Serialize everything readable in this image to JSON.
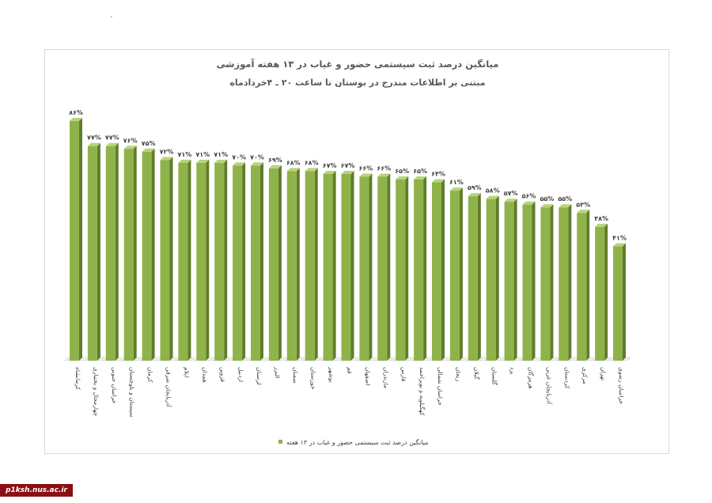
{
  "chart_data": {
    "type": "bar",
    "title": "میانگین درصد ثبت سیستمی حضور و غیاب در ۱۳ هفته آموزشی",
    "subtitle": "مبتنی بر اطلاعات مندرج در بوستان تا ساعت ۲۰ ـ ۴خردادماه",
    "categories": [
      "کرمانشاه",
      "چهارمحال و بختیاری",
      "خراسان جنوبی",
      "سیستان و بلوچستان",
      "کرمان",
      "آذربایجان شرقی",
      "ایلام",
      "همدان",
      "قزوین",
      "اردبیل",
      "لرستان",
      "البرز",
      "سمنان",
      "خوزستان",
      "بوشهر",
      "قم",
      "اصفهان",
      "مازندران",
      "فارس",
      "کهگیلویه و بویراحمد",
      "خراسان شمالی",
      "زنجان",
      "گیلان",
      "گلستان",
      "یزد",
      "هرمزگان",
      "آذربایجان غربی",
      "کردستان",
      "مرکزی",
      "تهران",
      "خراسان رضوی"
    ],
    "series": [
      {
        "name": "میانگین درصد ثبت سیستمی حضور و غیاب در ۱۳ هفته",
        "values": [
          86,
          77,
          77,
          76,
          75,
          72,
          71,
          71,
          71,
          70,
          70,
          69,
          68,
          68,
          67,
          67,
          66,
          66,
          65,
          65,
          64,
          61,
          59,
          58,
          57,
          56,
          55,
          55,
          53,
          48,
          41
        ],
        "labels": [
          "۸۶%",
          "۷۷%",
          "۷۷%",
          "۷۶%",
          "۷۵%",
          "۷۲%",
          "۷۱%",
          "۷۱%",
          "۷۱%",
          "۷۰%",
          "۷۰%",
          "۶۹%",
          "۶۸%",
          "۶۸%",
          "۶۷%",
          "۶۷%",
          "۶۶%",
          "۶۶%",
          "۶۵%",
          "۶۵%",
          "۶۴%",
          "۶۱%",
          "۵۹%",
          "۵۸%",
          "۵۷%",
          "۵۶%",
          "۵۵%",
          "۵۵%",
          "۵۳%",
          "۴۸%",
          "۴۱%"
        ]
      }
    ],
    "ylim": [
      0,
      100
    ],
    "grid": false,
    "legend_position": "bottom",
    "colors": {
      "bar_front": "#8fb34a",
      "bar_side": "#5f7d2a",
      "bar_top": "#b9d47c",
      "floor": "#d0d0d0"
    }
  },
  "watermark": "p1ksh.nus.ac.ir"
}
